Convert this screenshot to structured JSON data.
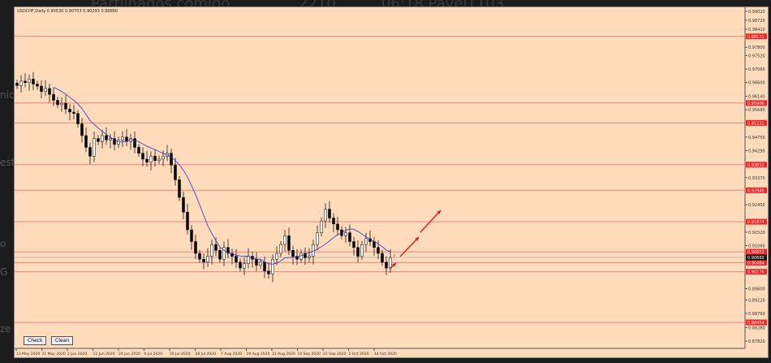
{
  "background": {
    "texts": [
      "Partilhados comigo",
      "2210",
      "06:18 Pavel1103"
    ],
    "side": [
      "nic",
      "est",
      "o",
      "G",
      "ze"
    ]
  },
  "window": {
    "title": "USDCHF,Daily  0.90530 0.90703 0.90293 0.90660"
  },
  "buttons": {
    "check": "Check",
    "clean": "Clean"
  },
  "colors": {
    "background": "#fedcbb",
    "level_line": "#f08080",
    "label_bg": "#ff2020",
    "ma": "#3030d0",
    "arrow": "#e02020"
  },
  "chart_data": {
    "type": "candlestick",
    "symbol": "USDCHF",
    "timeframe": "Daily",
    "ylim": [
      0.8782,
      0.9902
    ],
    "y_ticks": [
      "0.99020",
      "0.98720",
      "0.98410",
      "0.97800",
      "0.97520",
      "0.97060",
      "0.96600",
      "0.96140",
      "0.95680",
      "0.94750",
      "0.94290",
      "0.93370",
      "0.92450",
      "0.91520",
      "0.91060",
      "0.89600",
      "0.89220",
      "0.88760",
      "0.88280",
      "0.87820"
    ],
    "x_ticks": [
      "13 May 2020",
      "21 May 2020",
      "2 Jun 2020",
      "12 Jun 2020",
      "24 Jun 2020",
      "6 Jul 2020",
      "16 Jul 2020",
      "28 Jul 2020",
      "7 Aug 2020",
      "19 Aug 2020",
      "31 Aug 2020",
      "10 Sep 2020",
      "22 Sep 2020",
      "2 Oct 2020",
      "14 Oct 2020"
    ],
    "levels": [
      "0.98171",
      "0.95906",
      "0.95231",
      "0.93812",
      "0.92940",
      "0.91874",
      "0.90852",
      "0.90484",
      "0.90176",
      "0.88454"
    ],
    "current_price": "0.90660",
    "closes": [
      0.965,
      0.9665,
      0.966,
      0.9672,
      0.9655,
      0.9648,
      0.963,
      0.964,
      0.962,
      0.96,
      0.9585,
      0.959,
      0.957,
      0.956,
      0.9555,
      0.952,
      0.948,
      0.944,
      0.941,
      0.947,
      0.946,
      0.948,
      0.9465,
      0.947,
      0.945,
      0.9465,
      0.9475,
      0.946,
      0.947,
      0.944,
      0.942,
      0.94,
      0.939,
      0.941,
      0.9395,
      0.94,
      0.941,
      0.942,
      0.938,
      0.933,
      0.927,
      0.922,
      0.916,
      0.912,
      0.908,
      0.906,
      0.905,
      0.907,
      0.911,
      0.909,
      0.906,
      0.91,
      0.908,
      0.907,
      0.905,
      0.903,
      0.9045,
      0.907,
      0.906,
      0.904,
      0.905,
      0.902,
      0.901,
      0.906,
      0.908,
      0.911,
      0.914,
      0.909,
      0.907,
      0.906,
      0.908,
      0.9065,
      0.907,
      0.911,
      0.915,
      0.919,
      0.923,
      0.92,
      0.918,
      0.916,
      0.914,
      0.915,
      0.912,
      0.91,
      0.907,
      0.911,
      0.913,
      0.912,
      0.91,
      0.908,
      0.905,
      0.903,
      0.9066
    ],
    "annotation": "?"
  }
}
